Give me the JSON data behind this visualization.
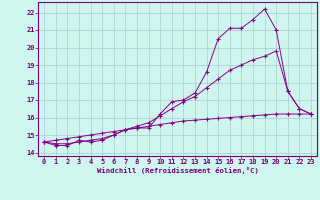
{
  "xlabel": "Windchill (Refroidissement éolien,°C)",
  "background_color": "#cef5ee",
  "grid_color": "#aacccc",
  "line_color": "#880088",
  "xlim": [
    -0.5,
    23.5
  ],
  "ylim": [
    13.8,
    22.6
  ],
  "xticks": [
    0,
    1,
    2,
    3,
    4,
    5,
    6,
    7,
    8,
    9,
    10,
    11,
    12,
    13,
    14,
    15,
    16,
    17,
    18,
    19,
    20,
    21,
    22,
    23
  ],
  "yticks": [
    14,
    15,
    16,
    17,
    18,
    19,
    20,
    21,
    22
  ],
  "series": [
    {
      "x": [
        0,
        1,
        2,
        3,
        4,
        5,
        6,
        7,
        8,
        9,
        10,
        11,
        12,
        13,
        14,
        15,
        16,
        17,
        18,
        19,
        20,
        21,
        22,
        23
      ],
      "y": [
        14.6,
        14.7,
        14.8,
        14.9,
        15.0,
        15.1,
        15.2,
        15.3,
        15.4,
        15.5,
        15.6,
        15.7,
        15.8,
        15.85,
        15.9,
        15.95,
        16.0,
        16.05,
        16.1,
        16.15,
        16.2,
        16.2,
        16.2,
        16.2
      ]
    },
    {
      "x": [
        0,
        1,
        2,
        3,
        4,
        5,
        6,
        7,
        8,
        9,
        10,
        11,
        12,
        13,
        14,
        15,
        16,
        17,
        18,
        19,
        20,
        21,
        22,
        23
      ],
      "y": [
        14.6,
        14.5,
        14.5,
        14.6,
        14.7,
        14.8,
        15.0,
        15.3,
        15.5,
        15.7,
        16.1,
        16.5,
        16.9,
        17.2,
        17.7,
        18.2,
        18.7,
        19.0,
        19.3,
        19.5,
        19.8,
        17.5,
        16.5,
        16.2
      ]
    },
    {
      "x": [
        0,
        1,
        2,
        3,
        4,
        5,
        6,
        7,
        8,
        9,
        10,
        11,
        12,
        13,
        14,
        15,
        16,
        17,
        18,
        19,
        20,
        21,
        22,
        23
      ],
      "y": [
        14.6,
        14.4,
        14.4,
        14.7,
        14.6,
        14.7,
        15.0,
        15.3,
        15.4,
        15.4,
        16.2,
        16.9,
        17.0,
        17.4,
        18.6,
        20.5,
        21.1,
        21.1,
        21.6,
        22.2,
        21.0,
        17.5,
        16.5,
        16.2
      ]
    }
  ]
}
